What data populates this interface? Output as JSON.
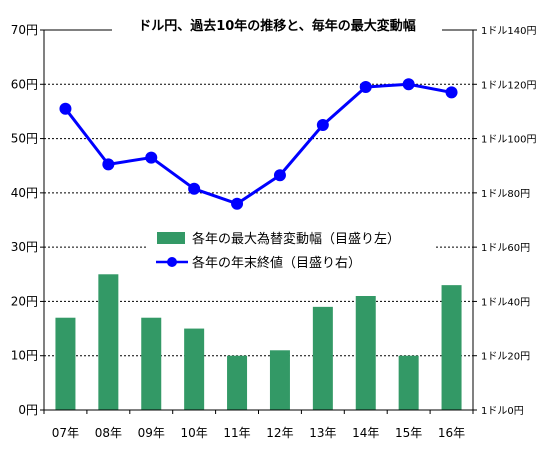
{
  "chart_data": {
    "type": "bar+line",
    "title": "ドル円、過去10年の推移と、毎年の最大変動幅",
    "categories": [
      "07年",
      "08年",
      "09年",
      "10年",
      "11年",
      "12年",
      "13年",
      "14年",
      "15年",
      "16年"
    ],
    "series": [
      {
        "name": "各年の最大為替変動幅（目盛り左）",
        "type": "bar",
        "axis": "left",
        "color": "#339966",
        "values": [
          17,
          25,
          17,
          15,
          10,
          11,
          19,
          21,
          10,
          23
        ]
      },
      {
        "name": "各年の年末終値（目盛り右）",
        "type": "line",
        "axis": "right",
        "color": "#0000ff",
        "values": [
          111,
          90.5,
          93,
          81.5,
          76,
          86.5,
          105,
          119,
          120,
          117
        ]
      }
    ],
    "left_axis": {
      "ylim": [
        0,
        70
      ],
      "ticks": [
        0,
        10,
        20,
        30,
        40,
        50,
        60,
        70
      ],
      "tick_labels": [
        "0円",
        "10円",
        "20円",
        "30円",
        "40円",
        "50円",
        "60円",
        "70円"
      ]
    },
    "right_axis": {
      "ylim": [
        0,
        140
      ],
      "ticks": [
        0,
        20,
        40,
        60,
        80,
        100,
        120,
        140
      ],
      "tick_labels": [
        "1ドル0円",
        "1ドル20円",
        "1ドル40円",
        "1ドル60円",
        "1ドル80円",
        "1ドル100円",
        "1ドル120円",
        "1ドル140円"
      ]
    },
    "grid": true,
    "legend_position": "center"
  }
}
